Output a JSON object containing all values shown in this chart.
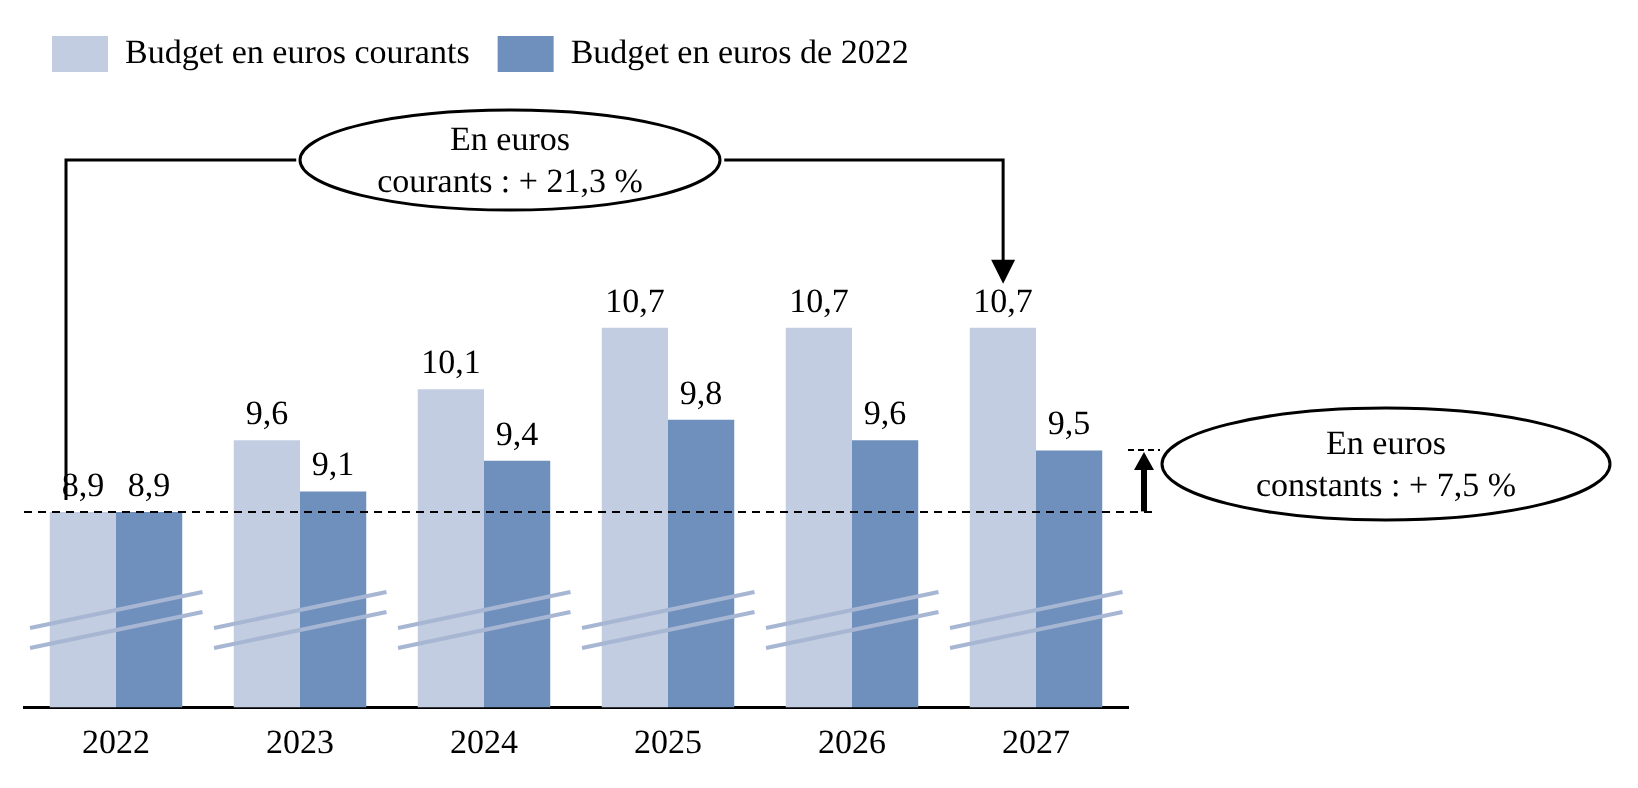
{
  "chart_data": {
    "type": "bar",
    "categories": [
      "2022",
      "2023",
      "2024",
      "2025",
      "2026",
      "2027"
    ],
    "series": [
      {
        "name": "Budget en euros courants",
        "color": "#c3cde1",
        "values": [
          8.9,
          9.6,
          10.1,
          10.7,
          10.7,
          10.7
        ],
        "value_labels": [
          "8,9",
          "9,6",
          "10,1",
          "10,7",
          "10,7",
          "10,7"
        ]
      },
      {
        "name": "Budget en euros de 2022",
        "color": "#6f8fbc",
        "values": [
          8.9,
          9.1,
          9.4,
          9.8,
          9.6,
          9.5
        ],
        "value_labels": [
          "8,9",
          "9,1",
          "9,4",
          "9,8",
          "9,6",
          "9,5"
        ]
      }
    ],
    "tick_labels": "x",
    "legend": "top left",
    "grid": false,
    "ref_lines": [
      {
        "axis": "y",
        "value": 8.9,
        "line_style": "dashed",
        "color": "#000000"
      }
    ],
    "annotations": [
      "En euros courants : + 21,3 %",
      "En euros constants : + 7,5 %"
    ]
  }
}
